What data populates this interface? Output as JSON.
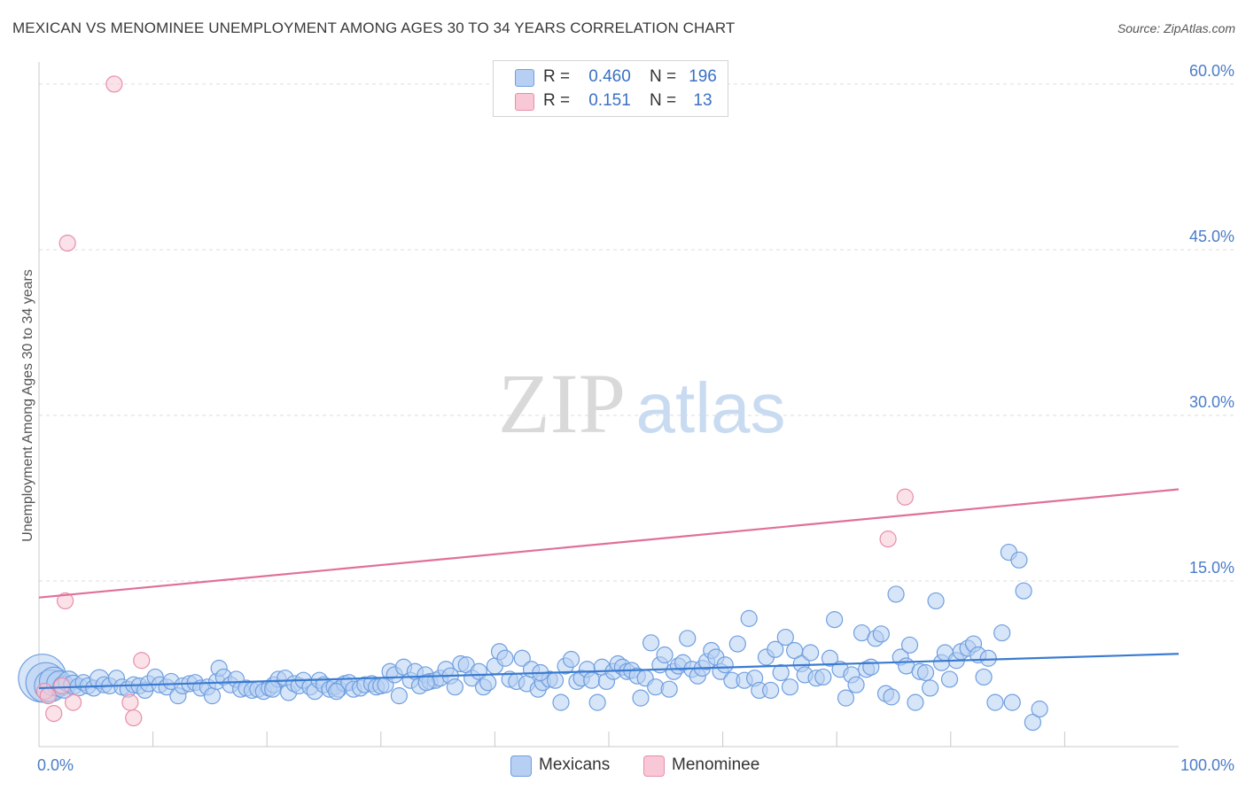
{
  "title": "MEXICAN VS MENOMINEE UNEMPLOYMENT AMONG AGES 30 TO 34 YEARS CORRELATION CHART",
  "source": "Source: ZipAtlas.com",
  "watermark": {
    "zip": "ZIP",
    "atlas": "atlas"
  },
  "colors": {
    "blue_fill": "#b6cff2",
    "blue_stroke": "#6f9fe0",
    "blue_line": "#3a7bd0",
    "pink_fill": "#f8c8d6",
    "pink_stroke": "#e88ea9",
    "pink_line": "#e0709a",
    "tick_text": "#4a7cc9",
    "grid": "#dddddd"
  },
  "legend_top": [
    {
      "r_label": "R =",
      "r_value": "0.460",
      "n_label": "N =",
      "n_value": "196",
      "color": "#b6cff2"
    },
    {
      "r_label": "R =",
      "r_value": "0.151",
      "n_label": "N =",
      "n_value": "13",
      "color": "#f8c8d6"
    }
  ],
  "legend_bottom": [
    {
      "name": "Mexicans",
      "color": "#b6cff2"
    },
    {
      "name": "Menominee",
      "color": "#f8c8d6"
    }
  ],
  "chart_data": {
    "type": "scatter",
    "ylabel": "Unemployment Among Ages 30 to 34 years",
    "xlabel": "",
    "xlim": [
      0,
      100
    ],
    "ylim": [
      0,
      62
    ],
    "y_ticks": [
      {
        "value": 15,
        "label": "15.0%"
      },
      {
        "value": 30,
        "label": "30.0%"
      },
      {
        "value": 45,
        "label": "45.0%"
      },
      {
        "value": 60,
        "label": "60.0%"
      }
    ],
    "x_tick_labels": [
      {
        "value": 0,
        "label": "0.0%"
      },
      {
        "value": 100,
        "label": "100.0%"
      }
    ],
    "x_minor_ticks": [
      10,
      20,
      30,
      40,
      50,
      60,
      70,
      80,
      90
    ],
    "grid": true,
    "legend_placement": "top-center",
    "series": [
      {
        "name": "Mexicans",
        "trend": {
          "x0": 0,
          "y0": 5.3,
          "x1": 100,
          "y1": 8.4
        },
        "points": [
          [
            0.3,
            6.2,
            3
          ],
          [
            0.6,
            5.8,
            2.5
          ],
          [
            1,
            5.5,
            2
          ],
          [
            1.3,
            5.9,
            1.8
          ],
          [
            1.8,
            5.7,
            1.6
          ],
          [
            2.2,
            5.4,
            1.4
          ],
          [
            2.6,
            5.9,
            1.3
          ],
          [
            3,
            5.6,
            1.2
          ],
          [
            3.5,
            5.4,
            1.1
          ],
          [
            3.9,
            5.8,
            1
          ],
          [
            4.3,
            5.5,
            1
          ],
          [
            4.8,
            5.3,
            1
          ],
          [
            5.3,
            6.1,
            1.2
          ],
          [
            5.7,
            5.6,
            1
          ],
          [
            6.2,
            5.5,
            1
          ],
          [
            6.8,
            6.2,
            1
          ],
          [
            7.3,
            5.4,
            1
          ],
          [
            7.8,
            5.2,
            1
          ],
          [
            8.3,
            5.6,
            1
          ],
          [
            8.8,
            5.5,
            1
          ],
          [
            9.3,
            5.1,
            1
          ],
          [
            9.6,
            5.7,
            1
          ],
          [
            10.2,
            6.3,
            1
          ],
          [
            10.6,
            5.6,
            1
          ],
          [
            11.2,
            5.4,
            1
          ],
          [
            11.6,
            5.9,
            1
          ],
          [
            12.2,
            4.6,
            1
          ],
          [
            12.6,
            5.5,
            1
          ],
          [
            13.2,
            5.7,
            1
          ],
          [
            13.7,
            5.8,
            1
          ],
          [
            14.2,
            5.3,
            1
          ],
          [
            14.8,
            5.4,
            1
          ],
          [
            15.2,
            4.6,
            1
          ],
          [
            15.6,
            5.9,
            1
          ],
          [
            15.8,
            7.1,
            1
          ],
          [
            16.2,
            6.3,
            1
          ],
          [
            16.8,
            5.6,
            1
          ],
          [
            17.3,
            6.1,
            1
          ],
          [
            17.7,
            5.2,
            1
          ],
          [
            18.2,
            5.3,
            1
          ],
          [
            18.7,
            5.1,
            1
          ],
          [
            19.2,
            5.2,
            1
          ],
          [
            19.7,
            5.0,
            1
          ],
          [
            20.2,
            5.3,
            1
          ],
          [
            20.6,
            5.6,
            1
          ],
          [
            21.0,
            6.1,
            1
          ],
          [
            21.6,
            6.2,
            1
          ],
          [
            21.9,
            4.9,
            1
          ],
          [
            22.4,
            5.7,
            1
          ],
          [
            22.8,
            5.5,
            1
          ],
          [
            23.2,
            6.0,
            1
          ],
          [
            23.8,
            5.4,
            1
          ],
          [
            24.2,
            5.0,
            1
          ],
          [
            24.6,
            6.0,
            1
          ],
          [
            25.0,
            5.6,
            1
          ],
          [
            25.5,
            5.2,
            1
          ],
          [
            25.9,
            5.4,
            1
          ],
          [
            26.3,
            5.2,
            1
          ],
          [
            26.8,
            5.7,
            1
          ],
          [
            27.2,
            5.8,
            1
          ],
          [
            27.6,
            5.2,
            1
          ],
          [
            28.2,
            5.3,
            1
          ],
          [
            28.6,
            5.6,
            1
          ],
          [
            29.2,
            5.7,
            1
          ],
          [
            29.6,
            5.4,
            1
          ],
          [
            30.0,
            5.5,
            1
          ],
          [
            30.4,
            5.6,
            1
          ],
          [
            30.8,
            6.8,
            1
          ],
          [
            31.2,
            6.5,
            1
          ],
          [
            31.6,
            4.6,
            1
          ],
          [
            32.0,
            7.2,
            1
          ],
          [
            32.6,
            6.0,
            1
          ],
          [
            33.0,
            6.8,
            1
          ],
          [
            33.4,
            5.5,
            1
          ],
          [
            33.9,
            6.5,
            1
          ],
          [
            34.3,
            5.9,
            1
          ],
          [
            34.8,
            6.0,
            1
          ],
          [
            35.2,
            6.2,
            1
          ],
          [
            35.7,
            7.0,
            1
          ],
          [
            36.1,
            6.4,
            1
          ],
          [
            36.5,
            5.4,
            1
          ],
          [
            37.0,
            7.5,
            1
          ],
          [
            37.5,
            7.4,
            1
          ],
          [
            38.0,
            6.2,
            1
          ],
          [
            38.6,
            6.8,
            1
          ],
          [
            39.0,
            5.4,
            1
          ],
          [
            39.4,
            5.8,
            1
          ],
          [
            40.0,
            7.3,
            1
          ],
          [
            40.4,
            8.6,
            1
          ],
          [
            40.9,
            8.0,
            1
          ],
          [
            41.3,
            6.1,
            1
          ],
          [
            41.9,
            5.9,
            1
          ],
          [
            42.4,
            8.0,
            1
          ],
          [
            42.8,
            5.7,
            1
          ],
          [
            43.2,
            7.0,
            1
          ],
          [
            43.8,
            5.2,
            1
          ],
          [
            44.2,
            5.8,
            1
          ],
          [
            44.8,
            6.1,
            1
          ],
          [
            45.3,
            6.0,
            1
          ],
          [
            45.8,
            4.0,
            1
          ],
          [
            46.2,
            7.3,
            1
          ],
          [
            46.7,
            7.9,
            1
          ],
          [
            47.2,
            5.9,
            1
          ],
          [
            47.6,
            6.2,
            1
          ],
          [
            48.1,
            7.0,
            1
          ],
          [
            48.5,
            6.0,
            1
          ],
          [
            49.0,
            4.0,
            1
          ],
          [
            49.4,
            7.2,
            1
          ],
          [
            49.8,
            5.9,
            1
          ],
          [
            50.4,
            6.8,
            1
          ],
          [
            50.8,
            7.5,
            1
          ],
          [
            51.2,
            7.2,
            1
          ],
          [
            51.6,
            6.8,
            1
          ],
          [
            52.0,
            6.9,
            1
          ],
          [
            52.5,
            6.4,
            1
          ],
          [
            52.8,
            4.4,
            1
          ],
          [
            53.2,
            6.2,
            1
          ],
          [
            53.7,
            9.4,
            1
          ],
          [
            54.1,
            5.4,
            1
          ],
          [
            54.5,
            7.4,
            1
          ],
          [
            54.9,
            8.3,
            1
          ],
          [
            55.3,
            5.2,
            1
          ],
          [
            55.7,
            6.8,
            1
          ],
          [
            56.1,
            7.3,
            1
          ],
          [
            56.5,
            7.6,
            1
          ],
          [
            56.9,
            9.8,
            1
          ],
          [
            57.3,
            7.0,
            1
          ],
          [
            57.8,
            6.4,
            1
          ],
          [
            58.2,
            7.1,
            1
          ],
          [
            58.6,
            7.7,
            1
          ],
          [
            59.0,
            8.7,
            1
          ],
          [
            59.4,
            8.1,
            1
          ],
          [
            59.8,
            6.8,
            1
          ],
          [
            60.2,
            7.4,
            1
          ],
          [
            60.8,
            6.0,
            1
          ],
          [
            61.3,
            9.3,
            1
          ],
          [
            61.9,
            6.0,
            1
          ],
          [
            62.3,
            11.6,
            1
          ],
          [
            62.8,
            6.2,
            1
          ],
          [
            63.2,
            5.1,
            1
          ],
          [
            63.8,
            8.1,
            1
          ],
          [
            64.2,
            5.1,
            1
          ],
          [
            64.6,
            8.8,
            1
          ],
          [
            65.1,
            6.7,
            1
          ],
          [
            65.5,
            9.9,
            1
          ],
          [
            65.9,
            5.4,
            1
          ],
          [
            66.3,
            8.7,
            1
          ],
          [
            66.9,
            7.5,
            1
          ],
          [
            67.2,
            6.5,
            1
          ],
          [
            67.7,
            8.5,
            1
          ],
          [
            68.2,
            6.2,
            1
          ],
          [
            68.8,
            6.3,
            1
          ],
          [
            69.4,
            8.0,
            1
          ],
          [
            69.8,
            11.5,
            1
          ],
          [
            70.3,
            7.0,
            1
          ],
          [
            70.8,
            4.4,
            1
          ],
          [
            71.3,
            6.5,
            1
          ],
          [
            71.7,
            5.6,
            1
          ],
          [
            72.2,
            10.3,
            1
          ],
          [
            72.6,
            7.0,
            1
          ],
          [
            73.0,
            7.2,
            1
          ],
          [
            73.4,
            9.8,
            1
          ],
          [
            73.9,
            10.2,
            1
          ],
          [
            74.3,
            4.8,
            1
          ],
          [
            74.8,
            4.5,
            1
          ],
          [
            75.2,
            13.8,
            1
          ],
          [
            75.6,
            8.1,
            1
          ],
          [
            76.1,
            7.3,
            1
          ],
          [
            76.4,
            9.2,
            1
          ],
          [
            76.9,
            4.0,
            1
          ],
          [
            77.3,
            6.8,
            1
          ],
          [
            77.8,
            6.7,
            1
          ],
          [
            78.2,
            5.3,
            1
          ],
          [
            78.7,
            13.2,
            1
          ],
          [
            79.2,
            7.6,
            1
          ],
          [
            79.5,
            8.5,
            1
          ],
          [
            79.9,
            6.1,
            1
          ],
          [
            80.5,
            7.8,
            1
          ],
          [
            80.9,
            8.6,
            1
          ],
          [
            81.5,
            8.9,
            1
          ],
          [
            82.0,
            9.3,
            1
          ],
          [
            82.4,
            8.3,
            1
          ],
          [
            82.9,
            6.3,
            1
          ],
          [
            83.3,
            8.0,
            1
          ],
          [
            83.9,
            4.0,
            1
          ],
          [
            84.5,
            10.3,
            1
          ],
          [
            85.1,
            17.6,
            1
          ],
          [
            85.4,
            4.0,
            1
          ],
          [
            86.0,
            16.9,
            1
          ],
          [
            86.4,
            14.1,
            1
          ],
          [
            87.2,
            2.2,
            1
          ],
          [
            87.8,
            3.4,
            1
          ],
          [
            20.5,
            5.2,
            1
          ],
          [
            26.1,
            5.0,
            1
          ],
          [
            34.0,
            5.8,
            1
          ],
          [
            44.0,
            6.7,
            1
          ]
        ]
      },
      {
        "name": "Menominee",
        "trend": {
          "x0": 0,
          "y0": 13.5,
          "x1": 100,
          "y1": 23.3
        },
        "points": [
          [
            0.5,
            5.0,
            1
          ],
          [
            0.8,
            4.6,
            1
          ],
          [
            1.3,
            3.0,
            1
          ],
          [
            2.0,
            5.5,
            1
          ],
          [
            2.3,
            13.2,
            1
          ],
          [
            2.5,
            45.6,
            1
          ],
          [
            3.0,
            4.0,
            1
          ],
          [
            6.6,
            60.0,
            1
          ],
          [
            8.0,
            4.0,
            1
          ],
          [
            8.3,
            2.6,
            1
          ],
          [
            9.0,
            7.8,
            1
          ],
          [
            74.5,
            18.8,
            1
          ],
          [
            76.0,
            22.6,
            1
          ]
        ]
      }
    ]
  }
}
